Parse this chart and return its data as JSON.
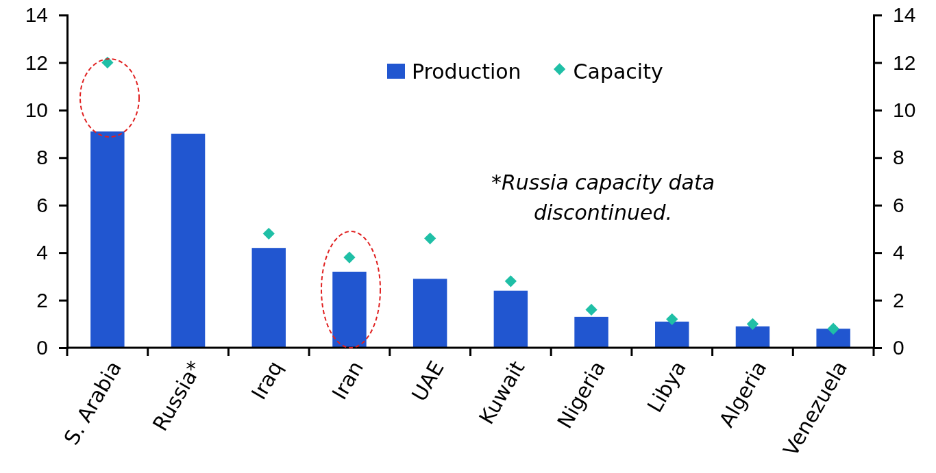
{
  "chart_data": {
    "type": "bar",
    "categories": [
      "S. Arabia",
      "Russia*",
      "Iraq",
      "Iran",
      "UAE",
      "Kuwait",
      "Nigeria",
      "Libya",
      "Algeria",
      "Venezuela"
    ],
    "series": [
      {
        "name": "Production",
        "color": "#2156d0",
        "values": [
          9.1,
          9.0,
          4.2,
          3.2,
          2.9,
          2.4,
          1.3,
          1.1,
          0.9,
          0.8
        ]
      },
      {
        "name": "Capacity",
        "type": "scatter",
        "color": "#1fbfa6",
        "marker": "diamond",
        "values": [
          12.0,
          null,
          4.8,
          3.8,
          4.6,
          2.8,
          1.6,
          1.2,
          1.0,
          0.8
        ]
      }
    ],
    "ylim": [
      0,
      14
    ],
    "yticks": [
      0,
      2,
      4,
      6,
      8,
      10,
      12,
      14
    ],
    "y2lim": [
      0,
      14
    ],
    "y2ticks": [
      0,
      2,
      4,
      6,
      8,
      10,
      12,
      14
    ],
    "grid": false,
    "legend": "top right",
    "annotations": [
      "*Russia capacity data discontinued."
    ]
  }
}
